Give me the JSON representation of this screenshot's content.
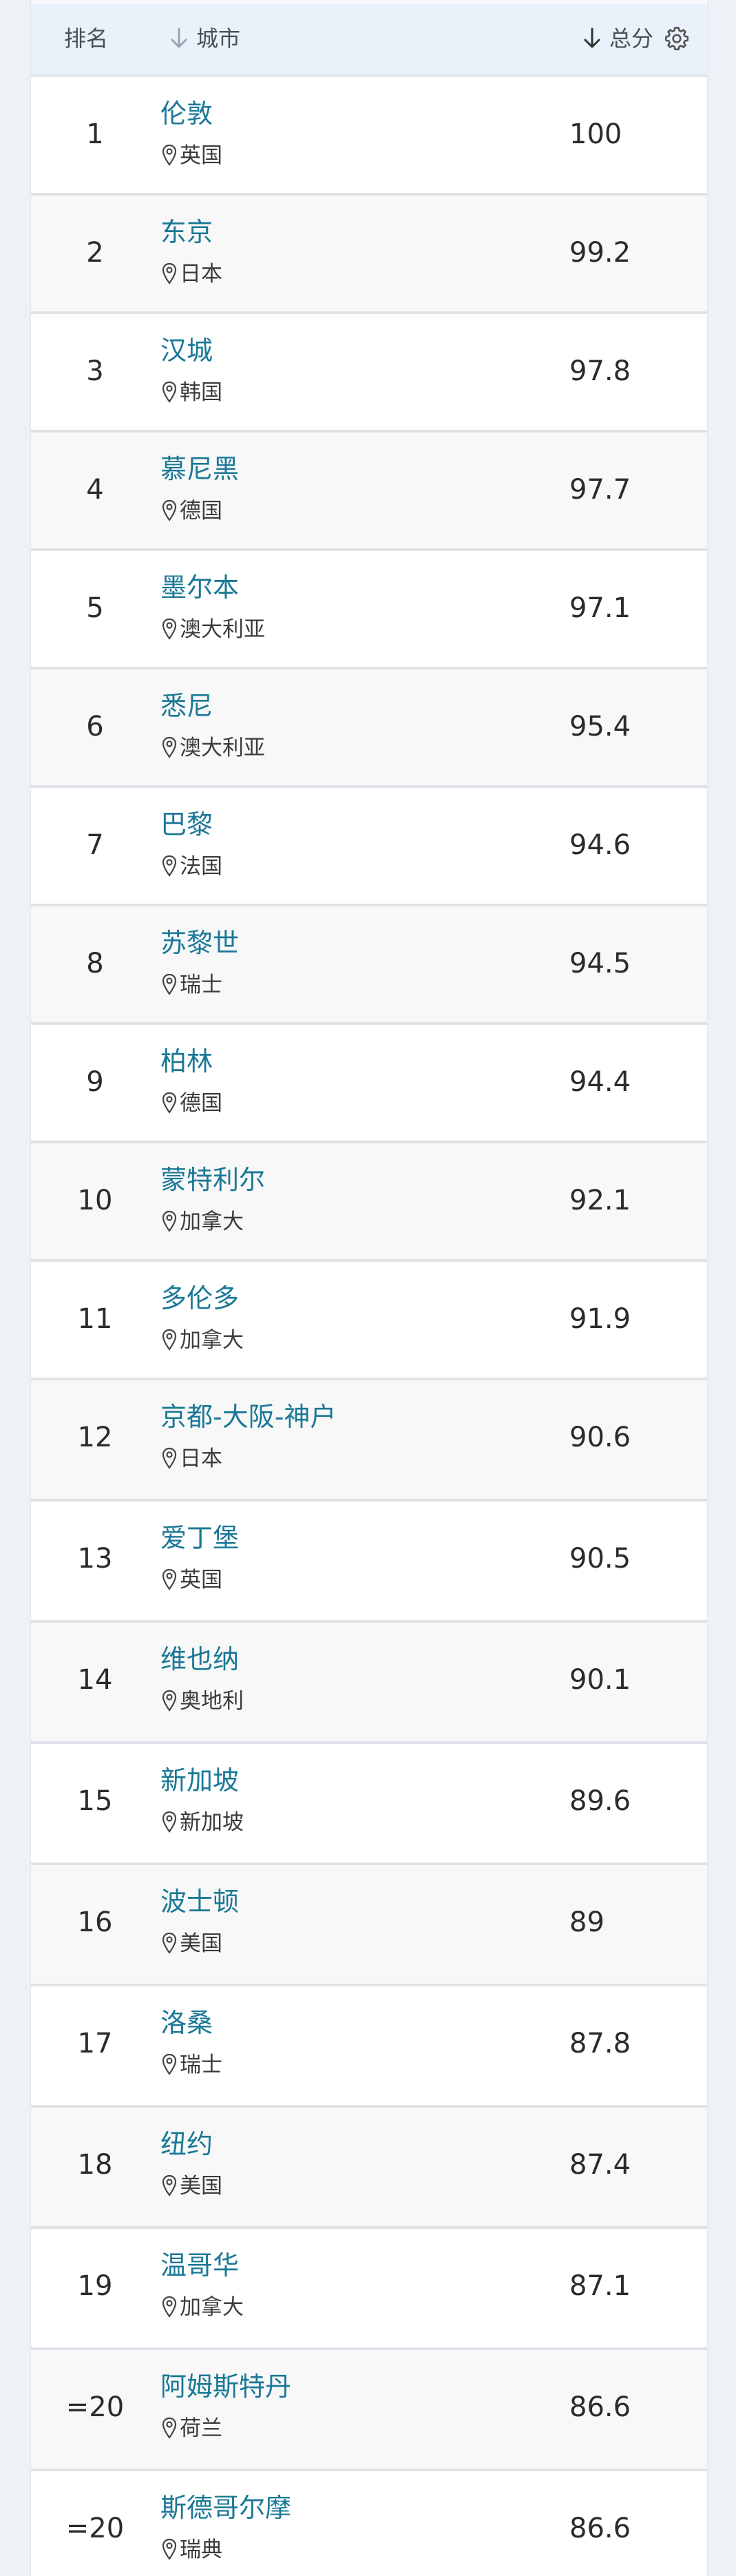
{
  "table": {
    "header": {
      "rank_label": "排名",
      "city_label": "城市",
      "score_label": "总分",
      "city_sort_icon": "arrow-down-icon",
      "score_sort_icon": "arrow-down-icon",
      "settings_icon": "gear-icon"
    },
    "rows": [
      {
        "rank": "1",
        "city": "伦敦",
        "country": "英国",
        "score": "100"
      },
      {
        "rank": "2",
        "city": "东京",
        "country": "日本",
        "score": "99.2"
      },
      {
        "rank": "3",
        "city": "汉城",
        "country": "韩国",
        "score": "97.8"
      },
      {
        "rank": "4",
        "city": "慕尼黑",
        "country": "德国",
        "score": "97.7"
      },
      {
        "rank": "5",
        "city": "墨尔本",
        "country": "澳大利亚",
        "score": "97.1"
      },
      {
        "rank": "6",
        "city": "悉尼",
        "country": "澳大利亚",
        "score": "95.4"
      },
      {
        "rank": "7",
        "city": "巴黎",
        "country": "法国",
        "score": "94.6"
      },
      {
        "rank": "8",
        "city": "苏黎世",
        "country": "瑞士",
        "score": "94.5"
      },
      {
        "rank": "9",
        "city": "柏林",
        "country": "德国",
        "score": "94.4"
      },
      {
        "rank": "10",
        "city": "蒙特利尔",
        "country": "加拿大",
        "score": "92.1"
      },
      {
        "rank": "11",
        "city": "多伦多",
        "country": "加拿大",
        "score": "91.9"
      },
      {
        "rank": "12",
        "city": "京都-大阪-神户",
        "country": "日本",
        "score": "90.6"
      },
      {
        "rank": "13",
        "city": "爱丁堡",
        "country": "英国",
        "score": "90.5"
      },
      {
        "rank": "14",
        "city": "维也纳",
        "country": "奥地利",
        "score": "90.1"
      },
      {
        "rank": "15",
        "city": "新加坡",
        "country": "新加坡",
        "score": "89.6"
      },
      {
        "rank": "16",
        "city": "波士顿",
        "country": "美国",
        "score": "89"
      },
      {
        "rank": "17",
        "city": "洛桑",
        "country": "瑞士",
        "score": "87.8"
      },
      {
        "rank": "18",
        "city": "纽约",
        "country": "美国",
        "score": "87.4"
      },
      {
        "rank": "19",
        "city": "温哥华",
        "country": "加拿大",
        "score": "87.1"
      },
      {
        "rank": "=20",
        "city": "阿姆斯特丹",
        "country": "荷兰",
        "score": "86.6"
      },
      {
        "rank": "=20",
        "city": "斯德哥尔摩",
        "country": "瑞典",
        "score": "86.6"
      }
    ]
  },
  "colors": {
    "link": "#1a7896",
    "header_bg": "#e9f1fb",
    "stripe_bg": "#f8f8f8"
  }
}
